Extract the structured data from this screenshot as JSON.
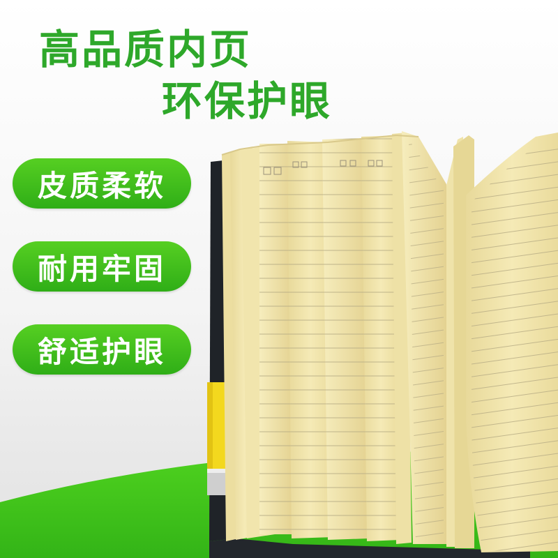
{
  "headline": {
    "line1": "高品质内页",
    "line2": "环保护眼"
  },
  "features": [
    {
      "label": "皮质柔软"
    },
    {
      "label": "耐用牢固"
    },
    {
      "label": "舒适护眼"
    }
  ],
  "colors": {
    "brand_green": "#2ea82a",
    "pill_green": "#3fbe1c",
    "ground_green": "#3fc61c",
    "page_cream": "#f3e7b1",
    "cover_dark": "#1f2328",
    "band_yellow": "#f3d81e"
  }
}
